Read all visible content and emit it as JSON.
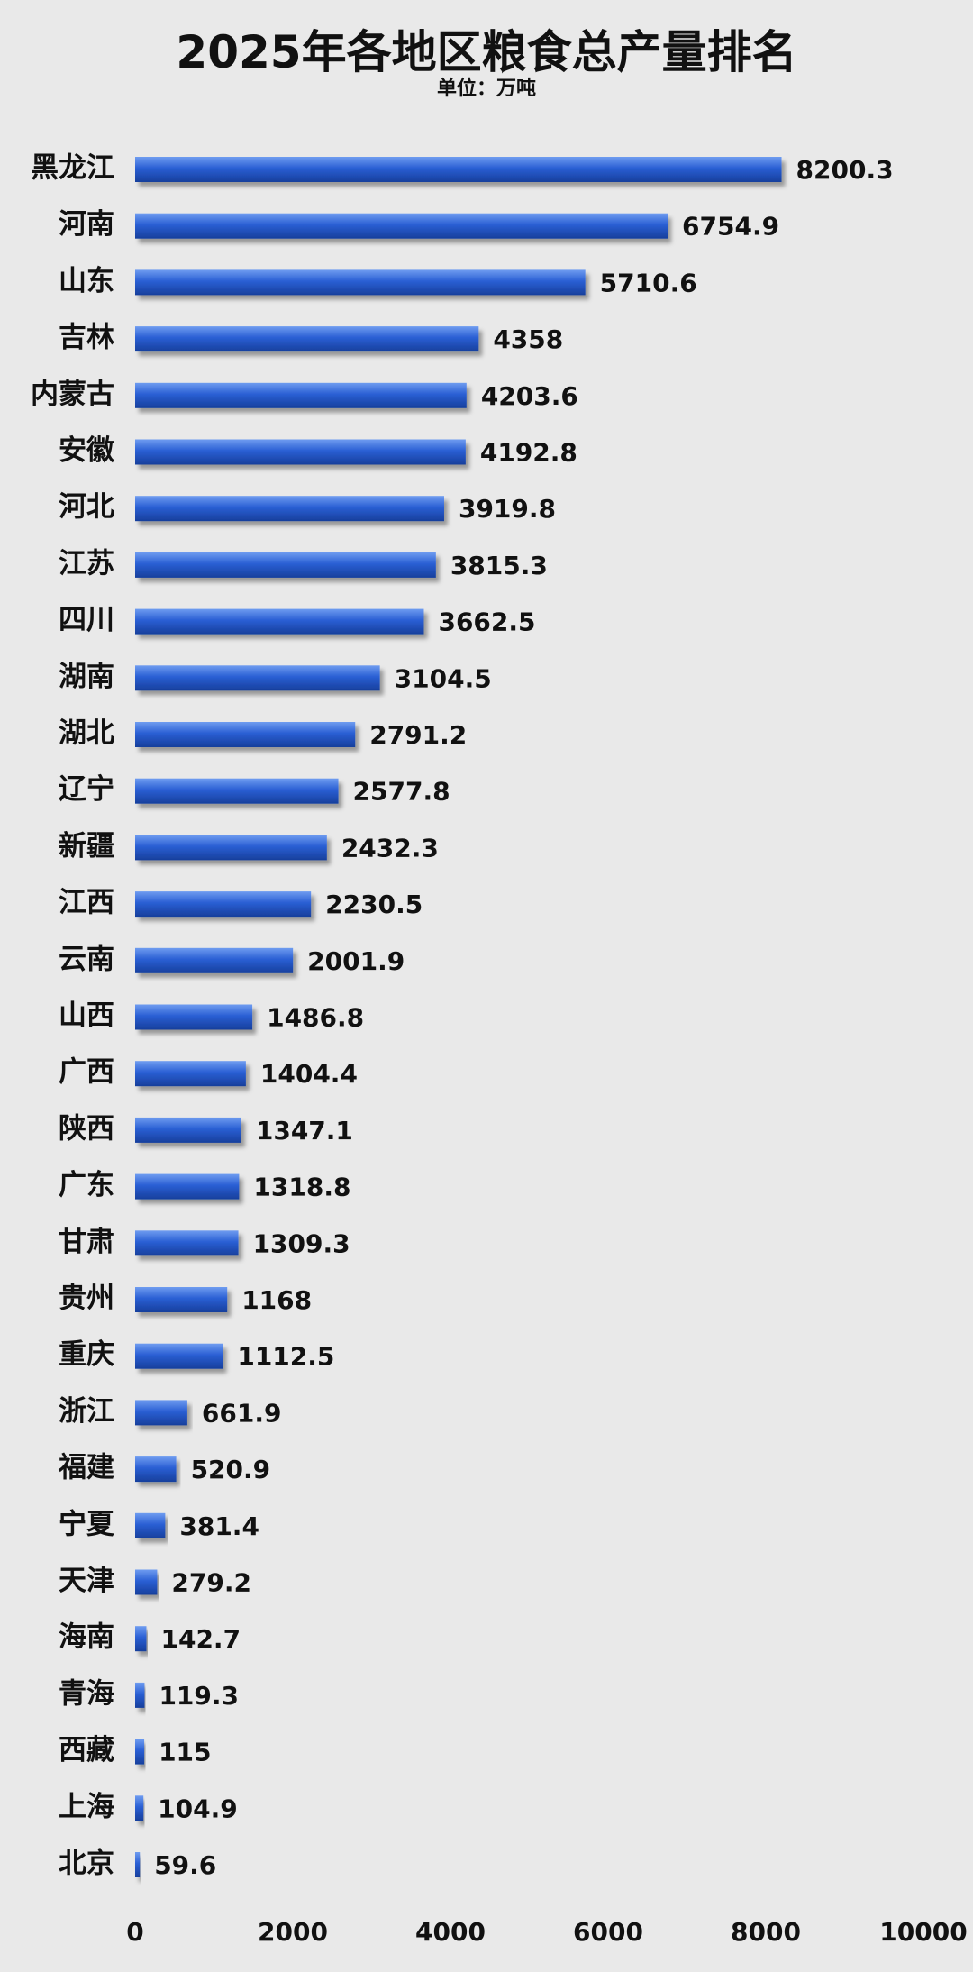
{
  "chart_data": {
    "type": "bar",
    "orientation": "horizontal",
    "title": "2025年各地区粮食总产量排名",
    "subtitle": "单位：万吨",
    "categories": [
      "黑龙江",
      "河南",
      "山东",
      "吉林",
      "内蒙古",
      "安徽",
      "河北",
      "江苏",
      "四川",
      "湖南",
      "湖北",
      "辽宁",
      "新疆",
      "江西",
      "云南",
      "山西",
      "广西",
      "陕西",
      "广东",
      "甘肃",
      "贵州",
      "重庆",
      "浙江",
      "福建",
      "宁夏",
      "天津",
      "海南",
      "青海",
      "西藏",
      "上海",
      "北京"
    ],
    "values": [
      8200.3,
      6754.9,
      5710.6,
      4358,
      4203.6,
      4192.8,
      3919.8,
      3815.3,
      3662.5,
      3104.5,
      2791.2,
      2577.8,
      2432.3,
      2230.5,
      2001.9,
      1486.8,
      1404.4,
      1347.1,
      1318.8,
      1309.3,
      1168,
      1112.5,
      661.9,
      520.9,
      381.4,
      279.2,
      142.7,
      119.3,
      115,
      104.9,
      59.6
    ],
    "value_labels": [
      "8200.3",
      "6754.9",
      "5710.6",
      "4358",
      "4203.6",
      "4192.8",
      "3919.8",
      "3815.3",
      "3662.5",
      "3104.5",
      "2791.2",
      "2577.8",
      "2432.3",
      "2230.5",
      "2001.9",
      "1486.8",
      "1404.4",
      "1347.1",
      "1318.8",
      "1309.3",
      "1168",
      "1112.5",
      "661.9",
      "520.9",
      "381.4",
      "279.2",
      "142.7",
      "119.3",
      "115",
      "104.9",
      "59.6"
    ],
    "xlim": [
      0,
      10000
    ],
    "x_ticks": [
      0,
      2000,
      4000,
      6000,
      8000,
      10000
    ],
    "xlabel": "",
    "ylabel": "",
    "grid": false,
    "legend": "none",
    "bar_color": "#2a5fd4"
  }
}
